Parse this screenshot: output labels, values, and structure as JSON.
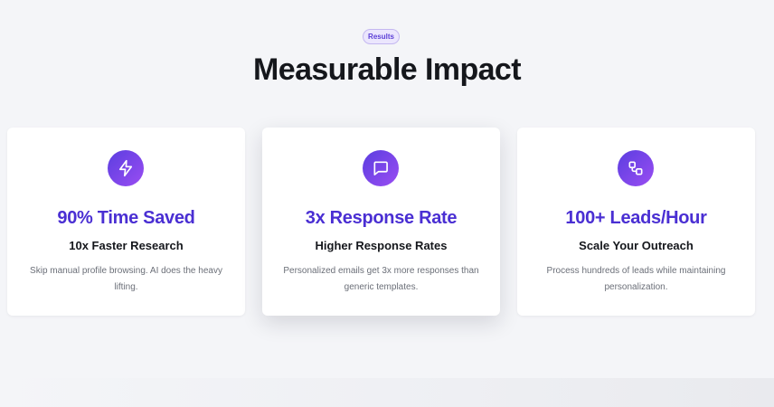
{
  "section": {
    "badge": "Results",
    "title": "Measurable Impact"
  },
  "colors": {
    "accent": "#4a2fd3",
    "icon_gradient_start": "#5b3ee0",
    "icon_gradient_end": "#9a4df2",
    "background": "#f4f5f8"
  },
  "cards": [
    {
      "icon": "lightning-icon",
      "stat": "90% Time Saved",
      "subtitle": "10x Faster Research",
      "description": "Skip manual profile browsing. AI does the heavy lifting."
    },
    {
      "icon": "chat-bubble-icon",
      "stat": "3x Response Rate",
      "subtitle": "Higher Response Rates",
      "description": "Personalized emails get 3x more responses than generic templates."
    },
    {
      "icon": "connected-nodes-icon",
      "stat": "100+ Leads/Hour",
      "subtitle": "Scale Your Outreach",
      "description": "Process hundreds of leads while maintaining personalization."
    }
  ]
}
